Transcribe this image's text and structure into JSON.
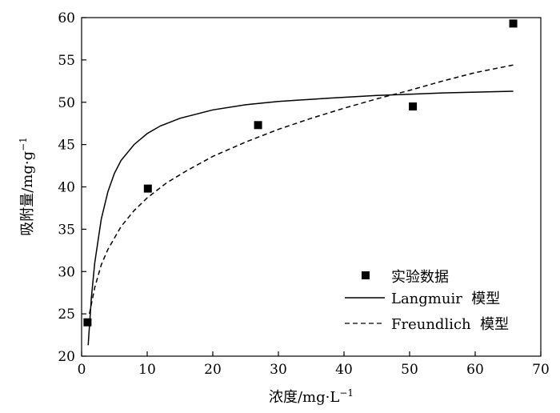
{
  "chart_data": {
    "type": "scatter",
    "xlabel": "浓度/mg·L",
    "xlabel_sup": "−1",
    "ylabel": "吸附量/mg·g",
    "ylabel_sup": "−1",
    "xlim": [
      0,
      70
    ],
    "ylim": [
      20,
      60
    ],
    "xticks": [
      "0",
      "10",
      "20",
      "30",
      "40",
      "50",
      "60",
      "70"
    ],
    "yticks": [
      "20",
      "25",
      "30",
      "35",
      "40",
      "45",
      "50",
      "55",
      "60"
    ],
    "grid": false,
    "legend_position": "bottom-right",
    "series": [
      {
        "name": "实验数据",
        "kind": "scatter",
        "marker": "square",
        "x": [
          0.9,
          10.1,
          26.9,
          50.5,
          65.8
        ],
        "y": [
          24.0,
          39.8,
          47.3,
          49.5,
          59.3
        ]
      },
      {
        "name": "Langmuir  模型",
        "kind": "line",
        "style": "solid",
        "x": [
          1.0,
          1.5,
          2.0,
          3.0,
          4.0,
          5.0,
          6.0,
          8.0,
          10.0,
          12.0,
          15.0,
          20.0,
          25.0,
          30.0,
          38.0,
          45.0,
          50.0,
          55.0,
          60.0,
          65.8
        ],
        "y": [
          21.3,
          27.0,
          31.0,
          36.2,
          39.4,
          41.6,
          43.1,
          45.0,
          46.3,
          47.2,
          48.1,
          49.1,
          49.7,
          50.1,
          50.5,
          50.8,
          50.95,
          51.1,
          51.2,
          51.3
        ]
      },
      {
        "name": "Freundlich  模型",
        "kind": "line",
        "style": "dashed",
        "x": [
          1.2,
          2.0,
          3.0,
          4.0,
          6.0,
          8.0,
          10.0,
          13.0,
          16.0,
          20.0,
          25.0,
          30.0,
          35.0,
          40.0,
          45.0,
          50.0,
          55.0,
          60.0,
          65.8
        ],
        "y": [
          25.0,
          28.1,
          30.8,
          32.6,
          35.3,
          37.2,
          38.7,
          40.5,
          41.9,
          43.6,
          45.3,
          46.8,
          48.1,
          49.3,
          50.4,
          51.4,
          52.5,
          53.5,
          54.4
        ]
      }
    ]
  }
}
